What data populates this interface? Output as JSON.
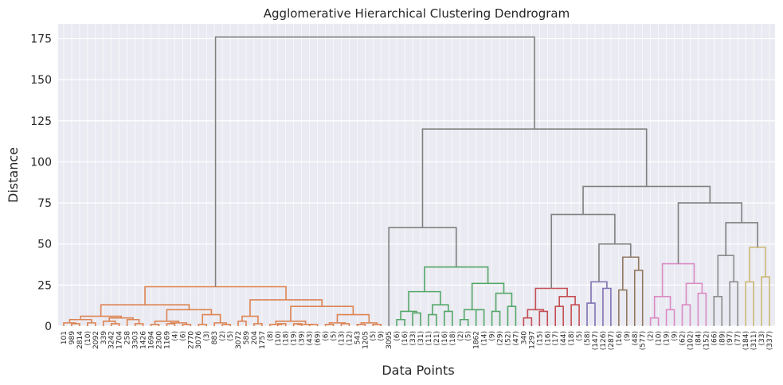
{
  "chart_data": {
    "type": "dendrogram",
    "title": "Agglomerative Hierarchical Clustering Dendrogram",
    "xlabel": "Data Points",
    "ylabel": "Distance",
    "ylim": [
      0,
      184
    ],
    "yticks": [
      0,
      25,
      50,
      75,
      100,
      125,
      150,
      175
    ],
    "grid": true,
    "background": "#eaeaf2",
    "leaf_labels": [
      "101",
      "989",
      "2814",
      "(10)",
      "2092",
      "339",
      "3242",
      "1704",
      "258",
      "3303",
      "1426",
      "1694",
      "2300",
      "1169",
      "(4)",
      "(6)",
      "2770",
      "3076",
      "(3)",
      "883",
      "(2)",
      "(5)",
      "3072",
      "589",
      "204",
      "1757",
      "(8)",
      "(10)",
      "(18)",
      "(19)",
      "(39)",
      "(43)",
      "(69)",
      "(6)",
      "(5)",
      "(13)",
      "(12)",
      "543",
      "1205",
      "(5)",
      "(9)",
      "3095",
      "(6)",
      "(16)",
      "(33)",
      "(31)",
      "(11)",
      "(21)",
      "(16)",
      "(18)",
      "(2)",
      "(5)",
      "1862",
      "(14)",
      "(9)",
      "(29)",
      "(52)",
      "(47)",
      "340",
      "1297",
      "(15)",
      "(16)",
      "(17)",
      "(44)",
      "(18)",
      "(5)",
      "(58)",
      "(147)",
      "(126)",
      "(287)",
      "(16)",
      "(9)",
      "(48)",
      "(577)",
      "(2)",
      "(10)",
      "(19)",
      "(9)",
      "(62)",
      "(102)",
      "(84)",
      "(152)",
      "(66)",
      "(89)",
      "(97)",
      "(77)",
      "(184)",
      "(311)",
      "(33)",
      "(337)"
    ],
    "colors": {
      "c1": "#dd8452",
      "c2": "#55a868",
      "c3": "#c44e52",
      "c4": "#8172b3",
      "c5": "#937860",
      "c6": "#da8bc3",
      "c7": "#8c8c8c",
      "c8": "#ccb974",
      "top": "#808080"
    },
    "tree": {
      "h": 176,
      "c": "top",
      "l": {
        "h": 24,
        "c": "c1",
        "l": {
          "h": 13,
          "c": "c1",
          "l": {
            "h": 6,
            "c": "c1",
            "l": {
              "h": 4,
              "c": "c1",
              "l": {
                "h": 2,
                "c": "c1",
                "l": {
                  "leaf": 0
                },
                "r": {
                  "h": 1.5,
                  "c": "c1",
                  "l": {
                    "leaf": 1
                  },
                  "r": {
                    "leaf": 2
                  }
                }
              },
              "r": {
                "h": 2,
                "c": "c1",
                "l": {
                  "leaf": 3
                },
                "r": {
                  "leaf": 4
                }
              }
            },
            "r": {
              "h": 5,
              "c": "c1",
              "l": {
                "h": 3,
                "c": "c1",
                "l": {
                  "leaf": 5
                },
                "r": {
                  "h": 1.5,
                  "c": "c1",
                  "l": {
                    "leaf": 6
                  },
                  "r": {
                    "leaf": 7
                  }
                }
              },
              "r": {
                "h": 4,
                "c": "c1",
                "l": {
                  "leaf": 8
                },
                "r": {
                  "h": 1.5,
                  "c": "c1",
                  "l": {
                    "leaf": 9
                  },
                  "r": {
                    "leaf": 10
                  }
                }
              }
            }
          },
          "r": {
            "h": 10,
            "c": "c1",
            "l": {
              "h": 3,
              "c": "c1",
              "l": {
                "h": 1,
                "c": "c1",
                "l": {
                  "leaf": 11
                },
                "r": {
                  "leaf": 12
                }
              },
              "r": {
                "h": 2,
                "c": "c1",
                "l": {
                  "h": 1.5,
                  "c": "c1",
                  "l": {
                    "leaf": 13
                  },
                  "r": {
                    "leaf": 14
                  }
                },
                "r": {
                  "h": 1,
                  "c": "c1",
                  "l": {
                    "leaf": 15
                  },
                  "r": {
                    "leaf": 16
                  }
                }
              }
            },
            "r": {
              "h": 7,
              "c": "c1",
              "l": {
                "h": 1,
                "c": "c1",
                "l": {
                  "leaf": 17
                },
                "r": {
                  "leaf": 18
                }
              },
              "r": {
                "h": 2,
                "c": "c1",
                "l": {
                  "leaf": 19
                },
                "r": {
                  "h": 1,
                  "c": "c1",
                  "l": {
                    "leaf": 20
                  },
                  "r": {
                    "leaf": 21
                  }
                }
              }
            }
          }
        },
        "r": {
          "h": 16,
          "c": "c1",
          "l": {
            "h": 6,
            "c": "c1",
            "l": {
              "h": 3,
              "c": "c1",
              "l": {
                "leaf": 22
              },
              "r": {
                "leaf": 23
              }
            },
            "r": {
              "h": 1.5,
              "c": "c1",
              "l": {
                "leaf": 24
              },
              "r": {
                "leaf": 25
              }
            }
          },
          "r": {
            "h": 12,
            "c": "c1",
            "l": {
              "h": 3,
              "c": "c1",
              "l": {
                "h": 1,
                "c": "c1",
                "l": {
                  "leaf": 26
                },
                "r": {
                  "h": 1.5,
                  "c": "c1",
                  "l": {
                    "leaf": 27
                  },
                  "r": {
                    "leaf": 28
                  }
                }
              },
              "r": {
                "h": 1,
                "c": "c1",
                "l": {
                  "h": 1.5,
                  "c": "c1",
                  "l": {
                    "leaf": 29
                  },
                  "r": {
                    "leaf": 30
                  }
                },
                "r": {
                  "h": 1,
                  "c": "c1",
                  "l": {
                    "leaf": 31
                  },
                  "r": {
                    "leaf": 32
                  }
                }
              }
            },
            "r": {
              "h": 7,
              "c": "c1",
              "l": {
                "h": 2,
                "c": "c1",
                "l": {
                  "h": 1,
                  "c": "c1",
                  "l": {
                    "leaf": 33
                  },
                  "r": {
                    "leaf": 34
                  }
                },
                "r": {
                  "h": 1.5,
                  "c": "c1",
                  "l": {
                    "leaf": 35
                  },
                  "r": {
                    "leaf": 36
                  }
                }
              },
              "r": {
                "h": 2,
                "c": "c1",
                "l": {
                  "h": 1,
                  "c": "c1",
                  "l": {
                    "leaf": 37
                  },
                  "r": {
                    "leaf": 38
                  }
                },
                "r": {
                  "h": 1,
                  "c": "c1",
                  "l": {
                    "leaf": 39
                  },
                  "r": {
                    "leaf": 40
                  }
                }
              }
            }
          }
        }
      },
      "r": {
        "h": 120,
        "c": "top",
        "l": {
          "h": 60,
          "c": "top",
          "l": {
            "leaf": 41
          },
          "r": {
            "h": 36,
            "c": "c2",
            "l": {
              "h": 21,
              "c": "c2",
              "l": {
                "h": 9,
                "c": "c2",
                "l": {
                  "h": 4,
                  "c": "c2",
                  "l": {
                    "leaf": 42
                  },
                  "r": {
                    "leaf": 43
                  }
                },
                "r": {
                  "h": 8,
                  "c": "c2",
                  "l": {
                    "leaf": 44
                  },
                  "r": {
                    "leaf": 45
                  }
                }
              },
              "r": {
                "h": 13,
                "c": "c2",
                "l": {
                  "h": 7,
                  "c": "c2",
                  "l": {
                    "leaf": 46
                  },
                  "r": {
                    "leaf": 47
                  }
                },
                "r": {
                  "h": 9,
                  "c": "c2",
                  "l": {
                    "leaf": 48
                  },
                  "r": {
                    "leaf": 49
                  }
                }
              }
            },
            "r": {
              "h": 26,
              "c": "c2",
              "l": {
                "h": 10,
                "c": "c2",
                "l": {
                  "h": 4,
                  "c": "c2",
                  "l": {
                    "leaf": 50
                  },
                  "r": {
                    "leaf": 51
                  }
                },
                "r": {
                  "h": 10,
                  "c": "c2",
                  "l": {
                    "leaf": 52
                  },
                  "r": {
                    "leaf": 53
                  }
                }
              },
              "r": {
                "h": 20,
                "c": "c2",
                "l": {
                  "h": 9,
                  "c": "c2",
                  "l": {
                    "leaf": 54
                  },
                  "r": {
                    "leaf": 55
                  }
                },
                "r": {
                  "h": 12,
                  "c": "c2",
                  "l": {
                    "leaf": 56
                  },
                  "r": {
                    "leaf": 57
                  }
                }
              }
            }
          }
        },
        "r": {
          "h": 85,
          "c": "top",
          "l": {
            "h": 68,
            "c": "top",
            "l": {
              "h": 23,
              "c": "c3",
              "l": {
                "h": 10,
                "c": "c3",
                "l": {
                  "h": 5,
                  "c": "c3",
                  "l": {
                    "leaf": 58
                  },
                  "r": {
                    "leaf": 59
                  }
                },
                "r": {
                  "h": 9,
                  "c": "c3",
                  "l": {
                    "leaf": 60
                  },
                  "r": {
                    "leaf": 61
                  }
                }
              },
              "r": {
                "h": 18,
                "c": "c3",
                "l": {
                  "h": 12,
                  "c": "c3",
                  "l": {
                    "leaf": 62
                  },
                  "r": {
                    "leaf": 63
                  }
                },
                "r": {
                  "h": 13,
                  "c": "c3",
                  "l": {
                    "leaf": 64
                  },
                  "r": {
                    "leaf": 65
                  }
                }
              }
            },
            "r": {
              "h": 50,
              "c": "top",
              "l": {
                "h": 27,
                "c": "c4",
                "l": {
                  "h": 14,
                  "c": "c4",
                  "l": {
                    "leaf": 66
                  },
                  "r": {
                    "leaf": 67
                  }
                },
                "r": {
                  "h": 23,
                  "c": "c4",
                  "l": {
                    "leaf": 68
                  },
                  "r": {
                    "leaf": 69
                  }
                }
              },
              "r": {
                "h": 42,
                "c": "c5",
                "l": {
                  "h": 22,
                  "c": "c5",
                  "l": {
                    "leaf": 70
                  },
                  "r": {
                    "leaf": 71
                  }
                },
                "r": {
                  "h": 34,
                  "c": "c5",
                  "l": {
                    "leaf": 72
                  },
                  "r": {
                    "leaf": 73
                  }
                }
              }
            }
          },
          "r": {
            "h": 75,
            "c": "top",
            "l": {
              "h": 38,
              "c": "c6",
              "l": {
                "h": 18,
                "c": "c6",
                "l": {
                  "h": 5,
                  "c": "c6",
                  "l": {
                    "leaf": 74
                  },
                  "r": {
                    "leaf": 75
                  }
                },
                "r": {
                  "h": 10,
                  "c": "c6",
                  "l": {
                    "leaf": 76
                  },
                  "r": {
                    "leaf": 77
                  }
                }
              },
              "r": {
                "h": 26,
                "c": "c6",
                "l": {
                  "h": 13,
                  "c": "c6",
                  "l": {
                    "leaf": 78
                  },
                  "r": {
                    "leaf": 79
                  }
                },
                "r": {
                  "h": 20,
                  "c": "c6",
                  "l": {
                    "leaf": 80
                  },
                  "r": {
                    "leaf": 81
                  }
                }
              }
            },
            "r": {
              "h": 63,
              "c": "top",
              "l": {
                "h": 43,
                "c": "c7",
                "l": {
                  "h": 18,
                  "c": "c7",
                  "l": {
                    "leaf": 82
                  },
                  "r": {
                    "leaf": 83
                  }
                },
                "r": {
                  "h": 27,
                  "c": "c7",
                  "l": {
                    "leaf": 84
                  },
                  "r": {
                    "leaf": 85
                  }
                }
              },
              "r": {
                "h": 48,
                "c": "c8",
                "l": {
                  "h": 27,
                  "c": "c8",
                  "l": {
                    "leaf": 86
                  },
                  "r": {
                    "leaf": 87
                  }
                },
                "r": {
                  "h": 30,
                  "c": "c8",
                  "l": {
                    "leaf": 88
                  },
                  "r": {
                    "leaf": 89
                  }
                }
              }
            }
          }
        }
      }
    }
  }
}
